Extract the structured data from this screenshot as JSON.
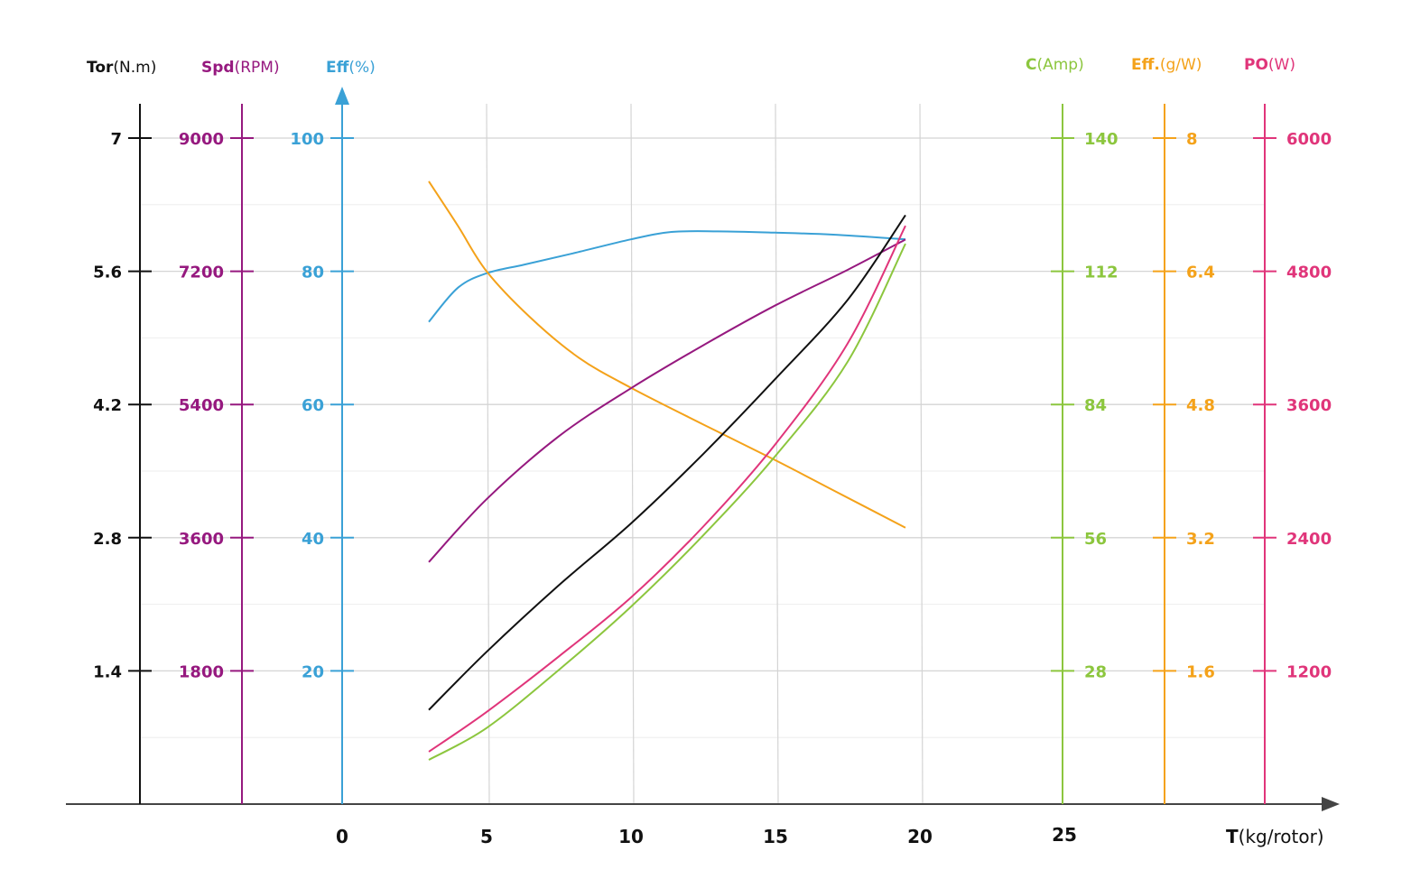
{
  "chart_data": {
    "type": "line",
    "title": "",
    "grid": true,
    "x_axis": {
      "label_bold": "T",
      "label_unit": "(kg/rotor)",
      "ticks": [
        0,
        5,
        10,
        15,
        20,
        25
      ],
      "range": [
        0,
        25
      ]
    },
    "y_axes": [
      {
        "id": "tor",
        "bold": "Tor",
        "unit": "(N.m)",
        "color": "#111111",
        "side": "left",
        "ticks": [
          "1.4",
          "2.8",
          "4.2",
          "5.6",
          "7"
        ],
        "step": 1.4
      },
      {
        "id": "spd",
        "bold": "Spd",
        "unit": "(RPM)",
        "color": "#96197f",
        "side": "left",
        "ticks": [
          "1800",
          "3600",
          "5400",
          "7200",
          "9000"
        ],
        "step": 1800
      },
      {
        "id": "eff",
        "bold": "Eff",
        "unit": "(%)",
        "color": "#3aa1d6",
        "side": "left",
        "ticks": [
          "20",
          "40",
          "60",
          "80",
          "100"
        ],
        "step": 20
      },
      {
        "id": "amp",
        "bold": "C",
        "unit": "(Amp)",
        "color": "#8cc63e",
        "side": "right",
        "ticks": [
          "28",
          "56",
          "84",
          "112",
          "140"
        ],
        "step": 28
      },
      {
        "id": "gw",
        "bold": "Eff.",
        "unit": "(g/W)",
        "color": "#f4a21a",
        "side": "right",
        "ticks": [
          "1.6",
          "3.2",
          "4.8",
          "6.4",
          "8"
        ],
        "step": 1.6
      },
      {
        "id": "po",
        "bold": "PO",
        "unit": "(W)",
        "color": "#e0357a",
        "side": "right",
        "ticks": [
          "1200",
          "2400",
          "3600",
          "4800",
          "6000"
        ],
        "step": 1200
      }
    ],
    "series": [
      {
        "name": "Efficiency (%)",
        "axis": "eff",
        "points": [
          [
            3,
            72.4
          ],
          [
            4,
            77.5
          ],
          [
            5,
            79.7
          ],
          [
            6.3,
            81
          ],
          [
            8,
            82.7
          ],
          [
            10,
            84.8
          ],
          [
            11.4,
            85.9
          ],
          [
            13,
            86
          ],
          [
            15,
            85.8
          ],
          [
            17,
            85.5
          ],
          [
            19.5,
            84.8
          ]
        ]
      },
      {
        "name": "Efficiency (g/W)",
        "axis": "gw",
        "points": [
          [
            3,
            7.48
          ],
          [
            4,
            6.95
          ],
          [
            5,
            6.4
          ],
          [
            6.5,
            5.85
          ],
          [
            8.2,
            5.36
          ],
          [
            10,
            5.0
          ],
          [
            12.5,
            4.56
          ],
          [
            15,
            4.13
          ],
          [
            17,
            3.77
          ],
          [
            19.5,
            3.32
          ]
        ]
      },
      {
        "name": "Speed (RPM)",
        "axis": "spd",
        "points": [
          [
            3,
            3270
          ],
          [
            5,
            4120
          ],
          [
            7.5,
            4970
          ],
          [
            10,
            5620
          ],
          [
            12.5,
            6200
          ],
          [
            15,
            6740
          ],
          [
            17.5,
            7220
          ],
          [
            19.5,
            7630
          ]
        ]
      },
      {
        "name": "Torque (N.m)",
        "axis": "tor",
        "points": [
          [
            3,
            0.99
          ],
          [
            5,
            1.6
          ],
          [
            7.5,
            2.3
          ],
          [
            10,
            2.95
          ],
          [
            12.5,
            3.68
          ],
          [
            15,
            4.47
          ],
          [
            17.5,
            5.3
          ],
          [
            19.5,
            6.19
          ]
        ]
      },
      {
        "name": "Power (W)",
        "axis": "po",
        "points": [
          [
            3,
            472
          ],
          [
            5,
            830
          ],
          [
            7.5,
            1330
          ],
          [
            10,
            1862
          ],
          [
            12.5,
            2500
          ],
          [
            15,
            3243
          ],
          [
            17.5,
            4150
          ],
          [
            19.5,
            5210
          ]
        ]
      },
      {
        "name": "Current (Amp)",
        "axis": "amp",
        "points": [
          [
            3,
            9.3
          ],
          [
            5,
            16
          ],
          [
            7.5,
            28.2
          ],
          [
            10,
            41.5
          ],
          [
            12.5,
            56.5
          ],
          [
            15,
            73.2
          ],
          [
            17.5,
            93
          ],
          [
            19.5,
            117.8
          ]
        ]
      }
    ]
  }
}
